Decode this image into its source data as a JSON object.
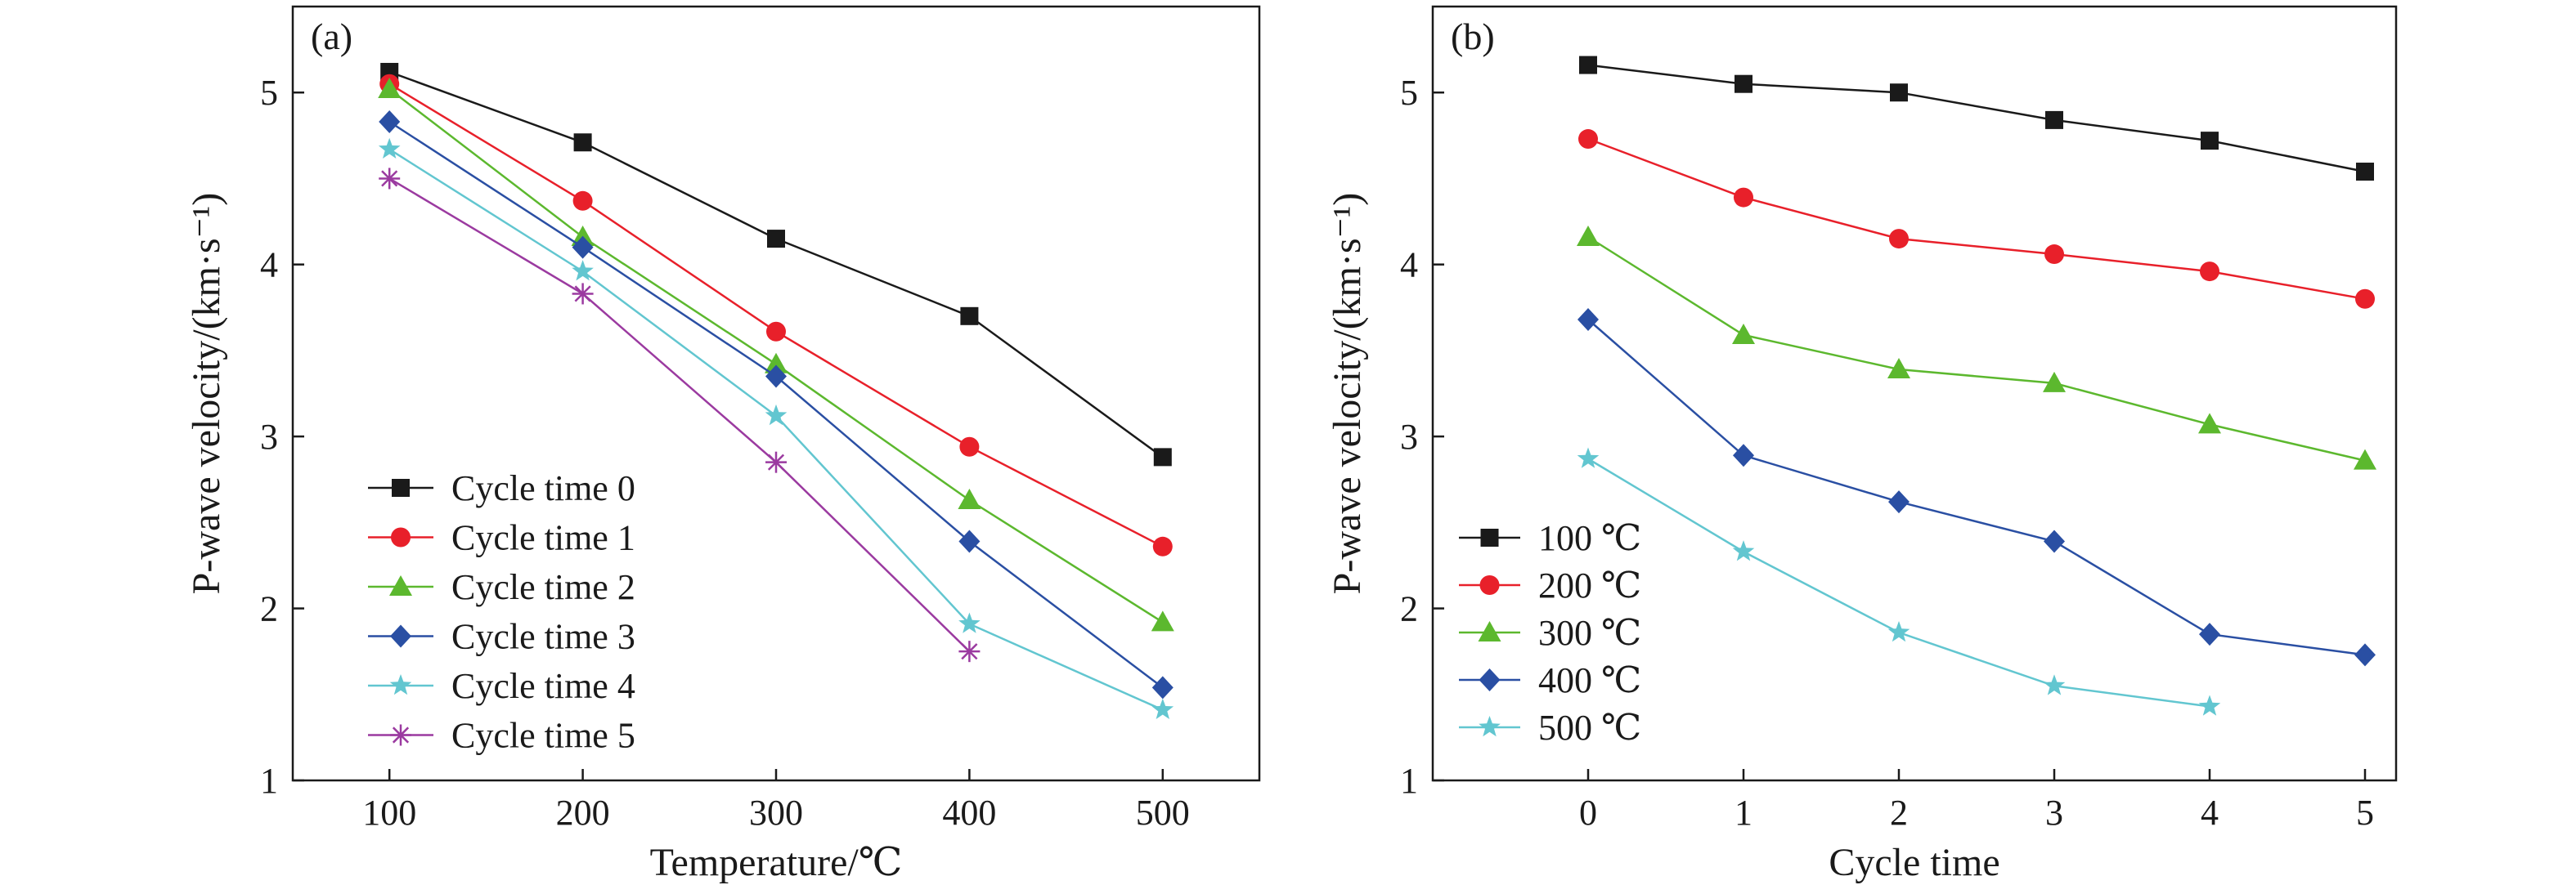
{
  "chart_data": [
    {
      "type": "line",
      "panel_label": "(a)",
      "xlabel": "Temperature/℃",
      "ylabel": "P-wave velocity/(km·s⁻¹)",
      "xlim": [
        50,
        550
      ],
      "ylim": [
        1,
        5.5
      ],
      "x_ticks": [
        100,
        200,
        300,
        400,
        500
      ],
      "y_ticks": [
        1,
        2,
        3,
        4,
        5
      ],
      "grid": false,
      "legend_position": "bottom-left",
      "series": [
        {
          "name": "Cycle time 0",
          "color": "#1a1a1a",
          "marker": "square",
          "x": [
            100,
            200,
            300,
            400,
            500
          ],
          "y": [
            5.12,
            4.71,
            4.15,
            3.7,
            2.88
          ]
        },
        {
          "name": "Cycle time 1",
          "color": "#e8202a",
          "marker": "circle",
          "x": [
            100,
            200,
            300,
            400,
            500
          ],
          "y": [
            5.05,
            4.37,
            3.61,
            2.94,
            2.36
          ]
        },
        {
          "name": "Cycle time 2",
          "color": "#5cb82e",
          "marker": "triangle",
          "x": [
            100,
            200,
            300,
            400,
            500
          ],
          "y": [
            5.02,
            4.16,
            3.42,
            2.63,
            1.92
          ]
        },
        {
          "name": "Cycle time 3",
          "color": "#2a4fa3",
          "marker": "diamond",
          "x": [
            100,
            200,
            300,
            400,
            500
          ],
          "y": [
            4.83,
            4.1,
            3.35,
            2.39,
            1.54
          ]
        },
        {
          "name": "Cycle time 4",
          "color": "#62c6d0",
          "marker": "star",
          "x": [
            100,
            200,
            300,
            400,
            500
          ],
          "y": [
            4.67,
            3.96,
            3.12,
            1.91,
            1.41
          ]
        },
        {
          "name": "Cycle time 5",
          "color": "#9b3aa0",
          "marker": "asterisk",
          "x": [
            100,
            200,
            300,
            400
          ],
          "y": [
            4.5,
            3.83,
            2.85,
            1.75
          ]
        }
      ]
    },
    {
      "type": "line",
      "panel_label": "(b)",
      "xlabel": "Cycle time",
      "ylabel": "P-wave velocity/(km·s⁻¹)",
      "xlim": [
        -1,
        5.2
      ],
      "ylim": [
        1,
        5.5
      ],
      "x_ticks": [
        0,
        1,
        2,
        3,
        4,
        5
      ],
      "y_ticks": [
        1,
        2,
        3,
        4,
        5
      ],
      "grid": false,
      "legend_position": "bottom-left",
      "series": [
        {
          "name": "100 ℃",
          "color": "#1a1a1a",
          "marker": "square",
          "x": [
            0,
            1,
            2,
            3,
            4,
            5
          ],
          "y": [
            5.16,
            5.05,
            5.0,
            4.84,
            4.72,
            4.54
          ]
        },
        {
          "name": "200 ℃",
          "color": "#e8202a",
          "marker": "circle",
          "x": [
            0,
            1,
            2,
            3,
            4,
            5
          ],
          "y": [
            4.73,
            4.39,
            4.15,
            4.06,
            3.96,
            3.8
          ]
        },
        {
          "name": "300 ℃",
          "color": "#5cb82e",
          "marker": "triangle",
          "x": [
            0,
            1,
            2,
            3,
            4,
            5
          ],
          "y": [
            4.16,
            3.59,
            3.39,
            3.31,
            3.07,
            2.86
          ]
        },
        {
          "name": "400 ℃",
          "color": "#2a4fa3",
          "marker": "diamond",
          "x": [
            0,
            1,
            2,
            3,
            4,
            5
          ],
          "y": [
            3.68,
            2.89,
            2.62,
            2.39,
            1.85,
            1.73
          ]
        },
        {
          "name": "500 ℃",
          "color": "#62c6d0",
          "marker": "star",
          "x": [
            0,
            1,
            2,
            3,
            4
          ],
          "y": [
            2.87,
            2.33,
            1.86,
            1.55,
            1.43
          ]
        }
      ]
    }
  ]
}
